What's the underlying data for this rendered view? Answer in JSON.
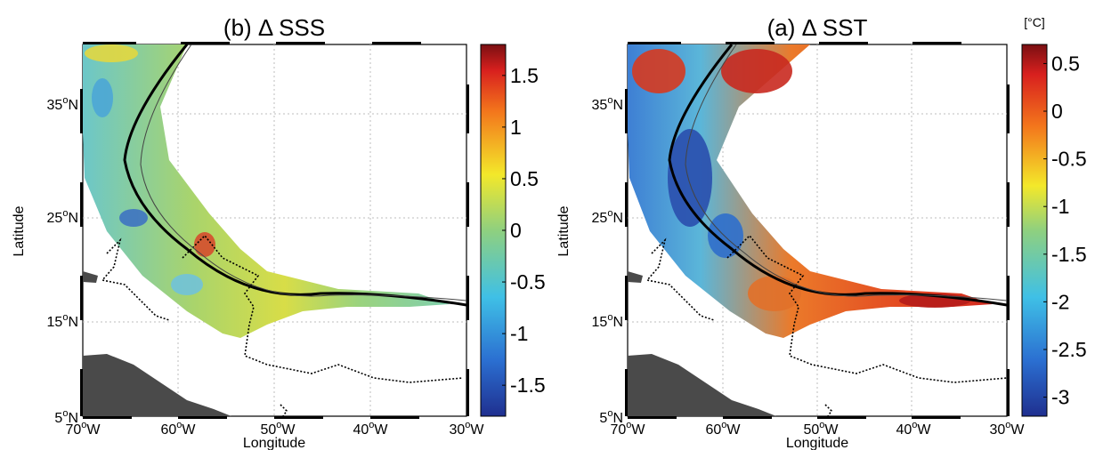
{
  "panels": [
    {
      "id": "sss",
      "title": "(b) Δ SSS",
      "ylabel": "Latitude",
      "xlabel": "Longitude",
      "lat_ticks": [
        {
          "deg": "35",
          "hem": "N"
        },
        {
          "deg": "25",
          "hem": "N"
        },
        {
          "deg": "15",
          "hem": "N"
        },
        {
          "deg": "5",
          "hem": "N"
        }
      ],
      "lon_ticks": [
        {
          "deg": "70",
          "hem": "W"
        },
        {
          "deg": "60",
          "hem": "W"
        },
        {
          "deg": "50",
          "hem": "W"
        },
        {
          "deg": "40",
          "hem": "W"
        },
        {
          "deg": "30",
          "hem": "W"
        }
      ],
      "colorbar": {
        "unit": "",
        "range": [
          -1.8,
          1.8
        ],
        "ticks": [
          "1.5",
          "1",
          "0.5",
          "0",
          "-0.5",
          "-1",
          "-1.5"
        ]
      }
    },
    {
      "id": "sst",
      "title": "(a) Δ SST",
      "ylabel": "Latitude",
      "xlabel": "Longitude",
      "lat_ticks": [
        {
          "deg": "35",
          "hem": "N"
        },
        {
          "deg": "25",
          "hem": "N"
        },
        {
          "deg": "15",
          "hem": "N"
        },
        {
          "deg": "5",
          "hem": "N"
        }
      ],
      "lon_ticks": [
        {
          "deg": "70",
          "hem": "W"
        },
        {
          "deg": "60",
          "hem": "W"
        },
        {
          "deg": "50",
          "hem": "W"
        },
        {
          "deg": "40",
          "hem": "W"
        },
        {
          "deg": "30",
          "hem": "W"
        }
      ],
      "colorbar": {
        "unit": "[°C]",
        "range": [
          -3.2,
          0.7
        ],
        "ticks": [
          "0.5",
          "0",
          "-0.5",
          "-1",
          "-1.5",
          "-2",
          "-2.5",
          "-3"
        ]
      }
    }
  ],
  "colors": {
    "land": "#4a4a4a",
    "track": "#000000",
    "grid": "#bdbdbd",
    "sss_swath_fill": "#8fcf8f",
    "sst_swath_fill": "#e8592a"
  }
}
